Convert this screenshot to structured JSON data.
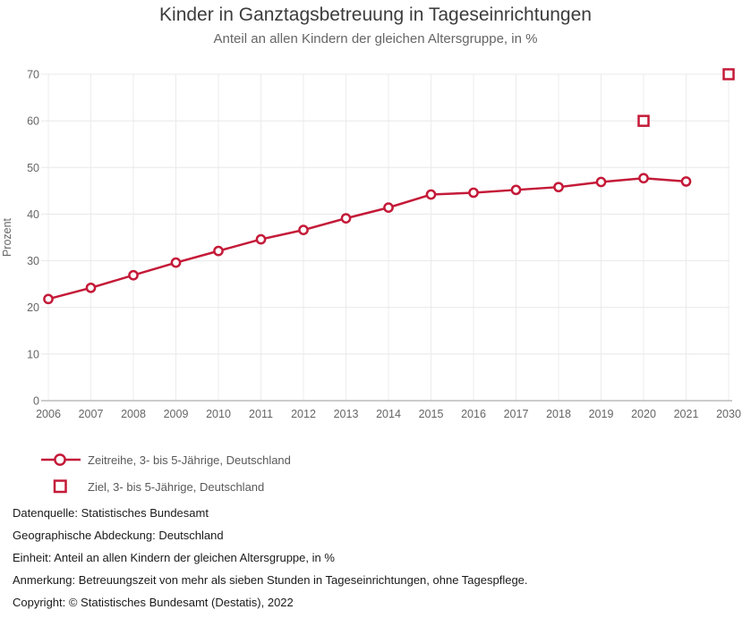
{
  "chart_data": {
    "type": "line",
    "title": "Kinder in Ganztagsbetreuung in Tageseinrichtungen",
    "subtitle": "Anteil an allen Kindern der gleichen Altersgruppe, in %",
    "ylabel": "Prozent",
    "ylim": [
      0,
      70
    ],
    "yticks": [
      0,
      10,
      20,
      30,
      40,
      50,
      60,
      70
    ],
    "categories": [
      "2006",
      "2007",
      "2008",
      "2009",
      "2010",
      "2011",
      "2012",
      "2013",
      "2014",
      "2015",
      "2016",
      "2017",
      "2018",
      "2019",
      "2020",
      "2021",
      "2030"
    ],
    "grid": true,
    "legend_position": "bottom-left",
    "accent_color": "#c41a38",
    "series": [
      {
        "name": "Zeitreihe, 3- bis 5-Jährige, Deutschland",
        "marker": "circle",
        "line": true,
        "points": [
          [
            "2006",
            21.8
          ],
          [
            "2007",
            24.2
          ],
          [
            "2008",
            26.9
          ],
          [
            "2009",
            29.6
          ],
          [
            "2010",
            32.1
          ],
          [
            "2011",
            34.6
          ],
          [
            "2012",
            36.6
          ],
          [
            "2013",
            39.1
          ],
          [
            "2014",
            41.4
          ],
          [
            "2015",
            44.2
          ],
          [
            "2016",
            44.6
          ],
          [
            "2017",
            45.2
          ],
          [
            "2018",
            45.8
          ],
          [
            "2019",
            46.9
          ],
          [
            "2020",
            47.7
          ],
          [
            "2021",
            47.0
          ]
        ]
      },
      {
        "name": "Ziel, 3- bis 5-Jährige, Deutschland",
        "marker": "square",
        "line": false,
        "points": [
          [
            "2020",
            60
          ],
          [
            "2030",
            70
          ]
        ]
      }
    ]
  },
  "footer": {
    "notes": [
      "Datenquelle: Statistisches Bundesamt",
      "Geographische Abdeckung: Deutschland",
      "Einheit: Anteil an allen Kindern der gleichen Altersgruppe, in %",
      "Anmerkung: Betreuungszeit von mehr als sieben Stunden in Tageseinrichtungen, ohne Tagespflege.",
      "Copyright: © Statistisches Bundesamt (Destatis), 2022"
    ]
  }
}
